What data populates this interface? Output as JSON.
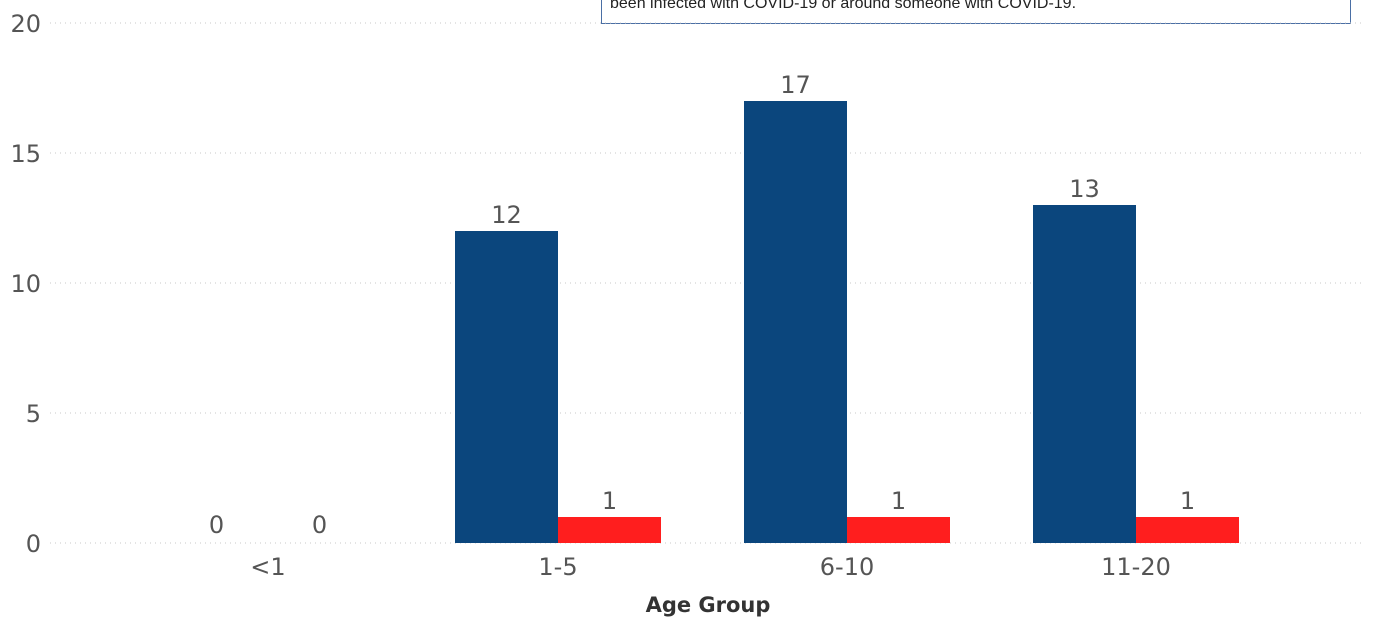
{
  "note": {
    "text": "been infected with COVID-19 or around someone with COVID-19."
  },
  "chart_data": {
    "type": "bar",
    "categories": [
      "<1",
      "1-5",
      "6-10",
      "11-20"
    ],
    "series": [
      {
        "color": "#0b467d",
        "values": [
          0,
          12,
          17,
          13
        ]
      },
      {
        "color": "#ff1e1e",
        "values": [
          0,
          1,
          1,
          1
        ]
      }
    ],
    "title": "",
    "xlabel": "Age Group",
    "ylabel": "",
    "ylim": [
      0,
      20
    ],
    "yticks": [
      0,
      5,
      10,
      15,
      20
    ],
    "grid": true,
    "data_labels": true
  }
}
